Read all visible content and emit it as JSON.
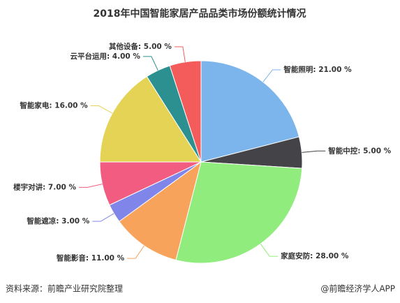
{
  "chart_data": {
    "type": "pie",
    "title": "2018年中国智能家居产品品类市场份额统计情况",
    "values": [
      21,
      5,
      28,
      11,
      3,
      7,
      16,
      4,
      5
    ],
    "value_labels": [
      "智能照明: 21.00 %",
      "智能中控: 5.00 %",
      "家庭安防: 28.00 %",
      "智能影音: 11.00 %",
      "智能遮凉: 3.00 %",
      "楼宇对讲: 7.00 %",
      "智能家电: 16.00 %",
      "云平台运用: 4.00 %",
      "其他设备: 5.00 %"
    ],
    "colors": [
      "#7cb5ec",
      "#434348",
      "#90ed7d",
      "#f7a35c",
      "#8085e9",
      "#f15c80",
      "#e4d354",
      "#2b908f",
      "#f45b5b"
    ],
    "source": "资料来源：前瞻产业研究院整理",
    "credit": "@前瞻经济学人APP"
  }
}
